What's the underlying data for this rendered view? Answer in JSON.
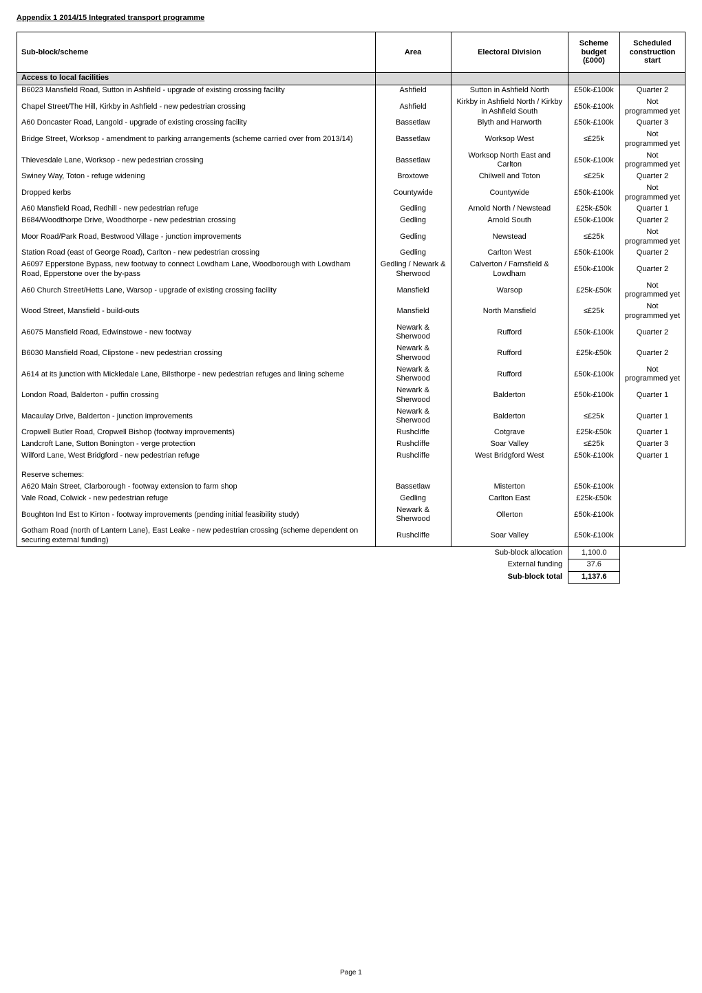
{
  "page": {
    "title": "Appendix 1 2014/15 Integrated transport programme",
    "section_header": "Access to local facilities",
    "footer": "Page 1"
  },
  "headers": {
    "scheme": "Sub-block/scheme",
    "area": "Area",
    "division": "Electoral Division",
    "budget": "Scheme budget (£000)",
    "start": "Scheduled construction start"
  },
  "rows": [
    {
      "scheme": "B6023 Mansfield Road, Sutton in Ashfield - upgrade of existing crossing facility",
      "area": "Ashfield",
      "division": "Sutton in Ashfield North",
      "budget": "£50k-£100k",
      "start": "Quarter 2"
    },
    {
      "scheme": "Chapel Street/The Hill, Kirkby in Ashfield - new pedestrian crossing",
      "area": "Ashfield",
      "division": "Kirkby in Ashfield North / Kirkby in Ashfield South",
      "budget": "£50k-£100k",
      "start": "Not programmed yet",
      "tall": true
    },
    {
      "scheme": "A60 Doncaster Road, Langold - upgrade of existing crossing facility",
      "area": "Bassetlaw",
      "division": "Blyth and Harworth",
      "budget": "£50k-£100k",
      "start": "Quarter 3"
    },
    {
      "scheme": "Bridge Street, Worksop - amendment to parking arrangements (scheme carried over from 2013/14)",
      "area": "Bassetlaw",
      "division": "Worksop West",
      "budget": "≤£25k",
      "start": "Not programmed yet"
    },
    {
      "scheme": "Thievesdale Lane, Worksop  - new pedestrian crossing",
      "area": "Bassetlaw",
      "division": "Worksop North East and Carlton",
      "budget": "£50k-£100k",
      "start": "Not programmed yet"
    },
    {
      "scheme": "Swiney Way, Toton - refuge widening",
      "area": "Broxtowe",
      "division": "Chilwell and Toton",
      "budget": "≤£25k",
      "start": "Quarter 2"
    },
    {
      "scheme": "Dropped kerbs",
      "area": "Countywide",
      "division": "Countywide",
      "budget": "£50k-£100k",
      "start": "Not programmed yet"
    },
    {
      "scheme": "A60 Mansfield Road, Redhill - new pedestrian refuge",
      "area": "Gedling",
      "division": "Arnold North / Newstead",
      "budget": "£25k-£50k",
      "start": "Quarter 1"
    },
    {
      "scheme": "B684/Woodthorpe Drive, Woodthorpe  - new pedestrian crossing",
      "area": "Gedling",
      "division": "Arnold South",
      "budget": "£50k-£100k",
      "start": "Quarter 2"
    },
    {
      "scheme": "Moor Road/Park Road, Bestwood Village - junction improvements",
      "area": "Gedling",
      "division": "Newstead",
      "budget": "≤£25k",
      "start": "Not programmed yet"
    },
    {
      "scheme": "Station Road (east of George Road), Carlton  - new pedestrian crossing",
      "area": "Gedling",
      "division": "Carlton West",
      "budget": "£50k-£100k",
      "start": "Quarter 2"
    },
    {
      "scheme": "A6097 Epperstone Bypass, new footway to connect Lowdham Lane, Woodborough with Lowdham Road, Epperstone over the by-pass",
      "area": "Gedling / Newark & Sherwood",
      "division": "Calverton / Farnsfield & Lowdham",
      "budget": "£50k-£100k",
      "start": "Quarter 2",
      "tall": true
    },
    {
      "scheme": "A60 Church Street/Hetts Lane, Warsop - upgrade of existing crossing facility",
      "area": "Mansfield",
      "division": "Warsop",
      "budget": "£25k-£50k",
      "start": "Not programmed yet"
    },
    {
      "scheme": "Wood Street, Mansfield - build-outs",
      "area": "Mansfield",
      "division": "North Mansfield",
      "budget": "≤£25k",
      "start": "Not programmed yet"
    },
    {
      "scheme": "A6075 Mansfield Road, Edwinstowe - new footway",
      "area": "Newark & Sherwood",
      "division": "Rufford",
      "budget": "£50k-£100k",
      "start": "Quarter 2"
    },
    {
      "scheme": "B6030 Mansfield Road, Clipstone - new pedestrian crossing",
      "area": "Newark & Sherwood",
      "division": "Rufford",
      "budget": "£25k-£50k",
      "start": "Quarter 2"
    },
    {
      "scheme": "A614 at its junction with Mickledale Lane, Bilsthorpe - new pedestrian refuges and lining scheme",
      "area": "Newark & Sherwood",
      "division": "Rufford",
      "budget": "£50k-£100k",
      "start": "Not programmed yet"
    },
    {
      "scheme": "London Road, Balderton - puffin crossing",
      "area": "Newark & Sherwood",
      "division": "Balderton",
      "budget": "£50k-£100k",
      "start": "Quarter 1"
    },
    {
      "scheme": "Macaulay Drive, Balderton - junction improvements",
      "area": "Newark & Sherwood",
      "division": "Balderton",
      "budget": "≤£25k",
      "start": "Quarter 1"
    },
    {
      "scheme": "Cropwell Butler Road, Cropwell Bishop (footway improvements)",
      "area": "Rushcliffe",
      "division": "Cotgrave",
      "budget": "£25k-£50k",
      "start": "Quarter 1"
    },
    {
      "scheme": "Landcroft Lane, Sutton Bonington - verge protection",
      "area": "Rushcliffe",
      "division": "Soar Valley",
      "budget": "≤£25k",
      "start": "Quarter 3"
    },
    {
      "scheme": "Wilford Lane, West Bridgford - new pedestrian refuge",
      "area": "Rushcliffe",
      "division": "West Bridgford West",
      "budget": "£50k-£100k",
      "start": "Quarter 1"
    }
  ],
  "reserve_header": "Reserve schemes:",
  "reserve_rows": [
    {
      "scheme": "A620 Main Street, Clarborough - footway extension to farm shop",
      "area": "Bassetlaw",
      "division": "Misterton",
      "budget": "£50k-£100k",
      "start": ""
    },
    {
      "scheme": "Vale Road, Colwick - new pedestrian refuge",
      "area": "Gedling",
      "division": "Carlton East",
      "budget": "£25k-£50k",
      "start": ""
    },
    {
      "scheme": "Boughton Ind Est to Kirton - footway improvements (pending initial feasibility study)",
      "area": "Newark & Sherwood",
      "division": "Ollerton",
      "budget": "£50k-£100k",
      "start": ""
    },
    {
      "scheme": "Gotham Road (north of Lantern Lane), East Leake  - new pedestrian crossing (scheme dependent on securing external funding)",
      "area": "Rushcliffe",
      "division": "Soar Valley",
      "budget": "£50k-£100k",
      "start": "",
      "tall": true
    }
  ],
  "totals": {
    "alloc_label": "Sub-block allocation",
    "alloc_value": "1,100.0",
    "ext_label": "External funding",
    "ext_value": "37.6",
    "total_label": "Sub-block total",
    "total_value": "1,137.6"
  }
}
